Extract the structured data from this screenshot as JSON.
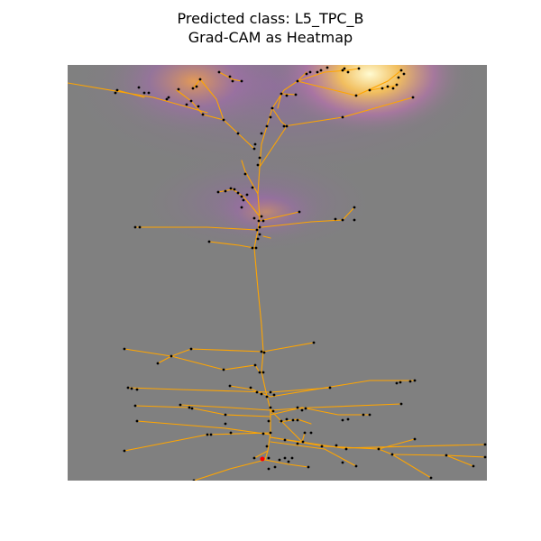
{
  "title": {
    "line1": "Predicted class: L5_TPC_B",
    "line2": "Grad-CAM as Heatmap"
  },
  "colors": {
    "background": "#808080",
    "heat_low": "#9a6bb0",
    "heat_mid": "#f4a341",
    "heat_high": "#fff7c0",
    "neurite": "#ffa500",
    "node": "#000000",
    "soma": "#ff0000"
  }
}
